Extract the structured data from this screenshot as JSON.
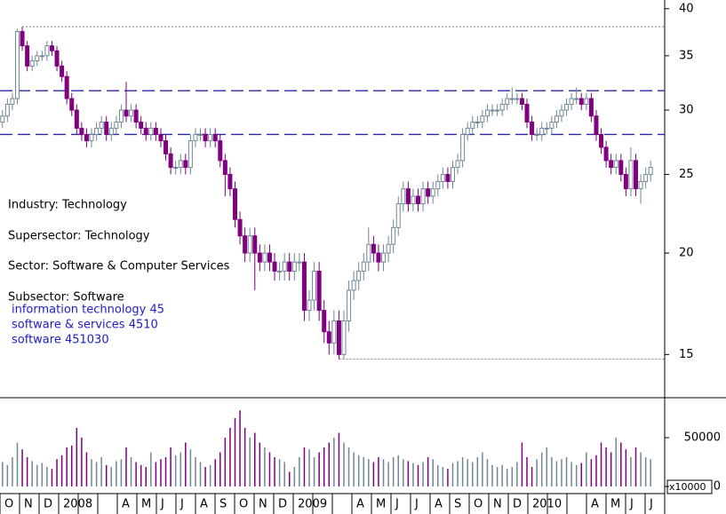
{
  "chart_data": {
    "type": "candlestick",
    "annotations": [
      "Industry: Technology",
      "Supersector: Technology",
      "Sector: Software & Computer Services",
      "Subsector: Software"
    ],
    "classification": [
      "information technology 45",
      "software & services 4510",
      "software 451030"
    ],
    "months": [
      "O",
      "N",
      "D",
      "2008",
      null,
      null,
      "A",
      "M",
      "J",
      "J",
      "A",
      "S",
      "O",
      "N",
      "D",
      "2009",
      null,
      null,
      "A",
      "M",
      "J",
      "J",
      "A",
      "S",
      "O",
      "N",
      "D",
      "2010",
      null,
      null,
      "A",
      "M",
      "J",
      "J"
    ],
    "candles": [
      [
        29,
        30,
        28.5,
        29.5
      ],
      [
        29.5,
        31,
        29,
        30.5
      ],
      [
        30.5,
        31.5,
        30,
        31
      ],
      [
        31,
        37.8,
        30.5,
        37.5
      ],
      [
        37.5,
        38,
        35.5,
        36
      ],
      [
        36,
        36.5,
        33.5,
        34
      ],
      [
        34,
        35,
        33.5,
        34.5
      ],
      [
        34.5,
        35.5,
        34,
        35
      ],
      [
        35,
        35.5,
        34.5,
        35
      ],
      [
        35,
        36.5,
        34.5,
        36
      ],
      [
        36,
        36.5,
        35,
        35.5
      ],
      [
        35.5,
        36,
        33.5,
        34
      ],
      [
        34,
        34.5,
        32.5,
        33
      ],
      [
        33,
        33.5,
        30.5,
        31
      ],
      [
        31,
        31.5,
        29.5,
        30
      ],
      [
        30,
        30.5,
        28,
        28.5
      ],
      [
        28.5,
        29,
        27.5,
        28
      ],
      [
        28,
        28.5,
        27,
        27.5
      ],
      [
        27.5,
        28.5,
        27,
        28
      ],
      [
        28,
        29,
        27.5,
        28.5
      ],
      [
        28.5,
        29.5,
        28,
        29
      ],
      [
        29,
        29.5,
        27.5,
        28
      ],
      [
        28,
        29,
        27.5,
        28.5
      ],
      [
        28.5,
        29.5,
        28,
        29
      ],
      [
        29,
        30.5,
        28.5,
        30
      ],
      [
        30,
        32.5,
        29,
        29.5
      ],
      [
        29.5,
        30.5,
        29,
        30
      ],
      [
        30,
        30.5,
        28.5,
        29
      ],
      [
        29,
        29.5,
        28,
        28.5
      ],
      [
        28.5,
        29,
        27.5,
        28
      ],
      [
        28,
        29,
        27.5,
        28.5
      ],
      [
        28.5,
        29,
        27.5,
        28
      ],
      [
        28,
        28.5,
        27,
        27.5
      ],
      [
        27.5,
        28,
        26,
        26.5
      ],
      [
        26.5,
        27,
        25,
        25.5
      ],
      [
        25.5,
        26,
        25,
        25.5
      ],
      [
        25.5,
        26.5,
        25,
        26
      ],
      [
        26,
        26.5,
        25,
        25.5
      ],
      [
        25.5,
        28,
        25,
        27.5
      ],
      [
        27.5,
        28.5,
        27,
        28
      ],
      [
        28,
        28.5,
        27.5,
        28
      ],
      [
        28,
        28.5,
        27,
        27.5
      ],
      [
        27.5,
        28.5,
        27,
        28
      ],
      [
        28,
        28.5,
        27,
        27.5
      ],
      [
        27.5,
        28,
        25.5,
        26
      ],
      [
        26,
        26.5,
        23.5,
        25
      ],
      [
        25,
        25.5,
        23.5,
        24
      ],
      [
        24,
        24.5,
        21.5,
        22
      ],
      [
        22,
        22.5,
        20.5,
        21
      ],
      [
        21,
        21.5,
        19.5,
        20
      ],
      [
        20,
        21.5,
        19.5,
        21
      ],
      [
        21,
        21.5,
        18,
        20
      ],
      [
        20,
        20.5,
        19,
        19.5
      ],
      [
        19.5,
        20.5,
        19,
        20
      ],
      [
        20,
        20.5,
        19,
        19.5
      ],
      [
        19.5,
        20,
        18.5,
        19
      ],
      [
        19,
        19.5,
        18.5,
        19
      ],
      [
        19,
        20,
        18.5,
        19.5
      ],
      [
        19.5,
        20,
        18.5,
        19
      ],
      [
        19,
        20,
        18.5,
        19.5
      ],
      [
        19.5,
        20,
        19,
        19.5
      ],
      [
        19.5,
        20,
        16.5,
        17
      ],
      [
        17,
        18,
        16.5,
        17.5
      ],
      [
        17.5,
        19.5,
        17,
        19
      ],
      [
        19,
        19.5,
        16.5,
        17
      ],
      [
        17,
        17.5,
        15.5,
        16
      ],
      [
        16,
        16.5,
        15,
        15.5
      ],
      [
        15.5,
        17,
        15,
        16.5
      ],
      [
        16.5,
        17,
        14.8,
        15
      ],
      [
        15,
        17,
        14.8,
        16.5
      ],
      [
        16.5,
        18.5,
        16,
        18
      ],
      [
        18,
        19,
        17.5,
        18.5
      ],
      [
        18.5,
        19.5,
        18,
        19
      ],
      [
        19,
        20,
        18.5,
        19.5
      ],
      [
        19.5,
        21.5,
        19,
        20.5
      ],
      [
        20.5,
        21,
        19.5,
        20
      ],
      [
        20,
        20.5,
        19,
        19.5
      ],
      [
        19.5,
        20.5,
        19,
        20
      ],
      [
        20,
        21,
        19.5,
        20.5
      ],
      [
        20.5,
        22,
        20,
        21.5
      ],
      [
        21.5,
        23.5,
        21,
        23
      ],
      [
        23,
        24.5,
        22.5,
        24
      ],
      [
        24,
        24.5,
        22.5,
        23
      ],
      [
        23,
        24,
        22.5,
        23.5
      ],
      [
        23.5,
        24,
        22.5,
        23
      ],
      [
        23,
        24.5,
        22.5,
        24
      ],
      [
        24,
        24.5,
        23,
        23.5
      ],
      [
        23.5,
        24.5,
        23,
        24
      ],
      [
        24,
        25,
        23.5,
        24.5
      ],
      [
        24.5,
        25.5,
        24,
        25
      ],
      [
        25,
        25.5,
        24,
        24.5
      ],
      [
        24.5,
        26,
        24,
        25.5
      ],
      [
        25.5,
        26.5,
        25,
        26
      ],
      [
        26,
        28.5,
        25.5,
        28
      ],
      [
        28,
        29,
        27.5,
        28.5
      ],
      [
        28.5,
        29.5,
        28,
        29
      ],
      [
        29,
        29.5,
        28.5,
        29
      ],
      [
        29,
        30,
        28.5,
        29.5
      ],
      [
        29.5,
        30.5,
        29,
        30
      ],
      [
        30,
        30.5,
        29.5,
        30
      ],
      [
        30,
        30.5,
        29.5,
        30
      ],
      [
        30,
        31,
        29.5,
        30.5
      ],
      [
        30.5,
        31.5,
        30,
        31
      ],
      [
        31,
        32,
        30.5,
        31
      ],
      [
        31,
        31.5,
        30.5,
        31
      ],
      [
        31,
        31.5,
        30,
        30.5
      ],
      [
        30.5,
        31,
        28.5,
        29
      ],
      [
        29,
        29.5,
        27.5,
        28
      ],
      [
        28,
        28.5,
        27.5,
        28
      ],
      [
        28,
        29,
        27.5,
        28.5
      ],
      [
        28.5,
        29,
        28,
        28.5
      ],
      [
        28.5,
        29.5,
        28,
        29
      ],
      [
        29,
        30,
        28.5,
        29.5
      ],
      [
        29.5,
        30.5,
        29,
        30
      ],
      [
        30,
        31,
        29.5,
        30.5
      ],
      [
        30.5,
        31.5,
        30,
        31
      ],
      [
        31,
        32,
        30.5,
        31
      ],
      [
        31,
        31.5,
        30,
        30.5
      ],
      [
        30.5,
        31.5,
        30,
        31
      ],
      [
        31,
        31.5,
        29,
        29.5
      ],
      [
        29.5,
        30,
        27.5,
        28
      ],
      [
        28,
        28.5,
        26.5,
        27
      ],
      [
        27,
        27.5,
        25.5,
        26
      ],
      [
        26,
        26.5,
        25,
        25.5
      ],
      [
        25.5,
        26.5,
        25,
        26
      ],
      [
        26,
        26.5,
        24.5,
        25
      ],
      [
        25,
        25.5,
        23.5,
        24
      ],
      [
        24,
        27,
        23.5,
        26
      ],
      [
        26,
        26.5,
        23.5,
        24
      ],
      [
        24,
        25,
        23,
        24.5
      ],
      [
        24.5,
        25.5,
        24,
        25
      ],
      [
        25,
        26,
        24.5,
        25.5
      ]
    ],
    "volume": [
      25000,
      22000,
      30000,
      45000,
      38000,
      30000,
      26000,
      22000,
      24000,
      20000,
      18000,
      28000,
      32000,
      40000,
      42000,
      60000,
      50000,
      35000,
      28000,
      25000,
      30000,
      22000,
      20000,
      26000,
      28000,
      40000,
      30000,
      25000,
      22000,
      20000,
      35000,
      25000,
      28000,
      30000,
      40000,
      32000,
      35000,
      45000,
      38000,
      30000,
      25000,
      20000,
      22000,
      28000,
      35000,
      50000,
      60000,
      70000,
      78000,
      60000,
      50000,
      55000,
      45000,
      40000,
      35000,
      30000,
      28000,
      25000,
      15000,
      20000,
      30000,
      40000,
      38000,
      30000,
      35000,
      40000,
      45000,
      50000,
      55000,
      45000,
      40000,
      35000,
      32000,
      30000,
      28000,
      25000,
      30000,
      28000,
      25000,
      30000,
      32000,
      28000,
      26000,
      24000,
      22000,
      25000,
      30000,
      28000,
      22000,
      20000,
      18000,
      24000,
      26000,
      30000,
      28000,
      25000,
      30000,
      35000,
      28000,
      22000,
      20000,
      22000,
      18000,
      20000,
      25000,
      45000,
      30000,
      20000,
      28000,
      35000,
      40000,
      30000,
      26000,
      28000,
      30000,
      25000,
      22000,
      24000,
      35000,
      28000,
      32000,
      45000,
      40000,
      35000,
      50000,
      45000,
      38000,
      30000,
      40000,
      35000,
      30000,
      28000
    ],
    "up_color": "#6f8796",
    "down_color": "#800080",
    "level_color": "#2a2aa8",
    "levels": [
      31.7,
      28
    ],
    "log_scale": true,
    "ylim": [
      13.27,
      41
    ],
    "yticks": [
      15,
      20,
      25,
      30,
      35,
      40
    ],
    "volume_ylim": [
      0,
      90000
    ],
    "volume_yticks": [
      0,
      50000
    ],
    "volume_unit": "x10000"
  }
}
